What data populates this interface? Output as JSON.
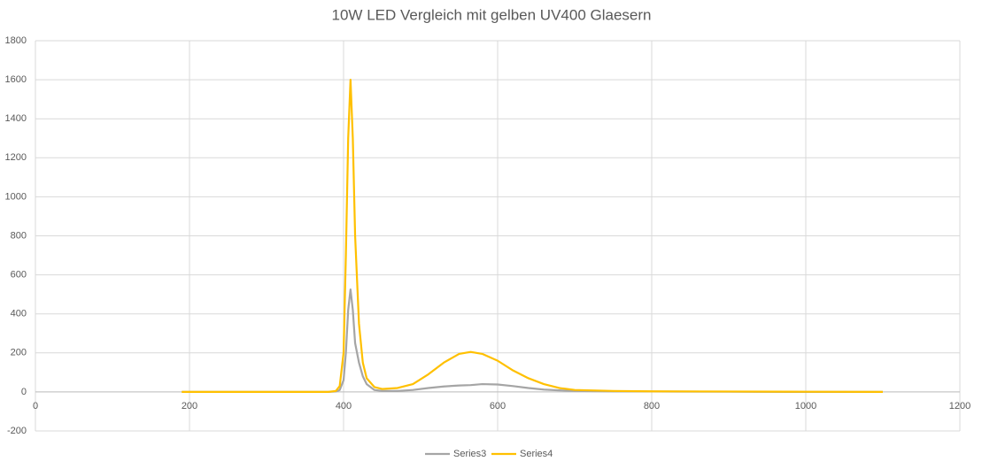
{
  "chart_data": {
    "type": "line",
    "title": "10W LED Vergleich mit gelben UV400 Glaesern",
    "x": [
      190,
      250,
      300,
      350,
      380,
      390,
      395,
      400,
      403,
      406,
      409,
      412,
      415,
      420,
      425,
      430,
      440,
      450,
      470,
      490,
      510,
      530,
      550,
      565,
      580,
      600,
      620,
      640,
      660,
      680,
      700,
      750,
      800,
      900,
      1000,
      1100
    ],
    "series": [
      {
        "name": "Series3",
        "color": "#a5a5a5",
        "values": [
          0,
          0,
          0,
          0,
          0,
          2,
          10,
          60,
          200,
          420,
          525,
          420,
          250,
          150,
          80,
          40,
          10,
          5,
          5,
          10,
          20,
          28,
          33,
          35,
          40,
          38,
          30,
          20,
          12,
          8,
          5,
          3,
          2,
          1,
          0,
          0
        ]
      },
      {
        "name": "Series4",
        "color": "#ffc000",
        "values": [
          0,
          0,
          0,
          0,
          0,
          5,
          30,
          200,
          700,
          1300,
          1600,
          1300,
          800,
          350,
          150,
          70,
          25,
          15,
          20,
          40,
          90,
          150,
          195,
          205,
          195,
          160,
          110,
          70,
          40,
          20,
          10,
          5,
          3,
          2,
          1,
          0
        ]
      }
    ],
    "xlim": [
      0,
      1200
    ],
    "xticks": [
      0,
      200,
      400,
      600,
      800,
      1000,
      1200
    ],
    "ylim": [
      -200,
      1800
    ],
    "yticks": [
      -200,
      0,
      200,
      400,
      600,
      800,
      1000,
      1200,
      1400,
      1600,
      1800
    ],
    "grid": true,
    "legend": "bottom"
  }
}
